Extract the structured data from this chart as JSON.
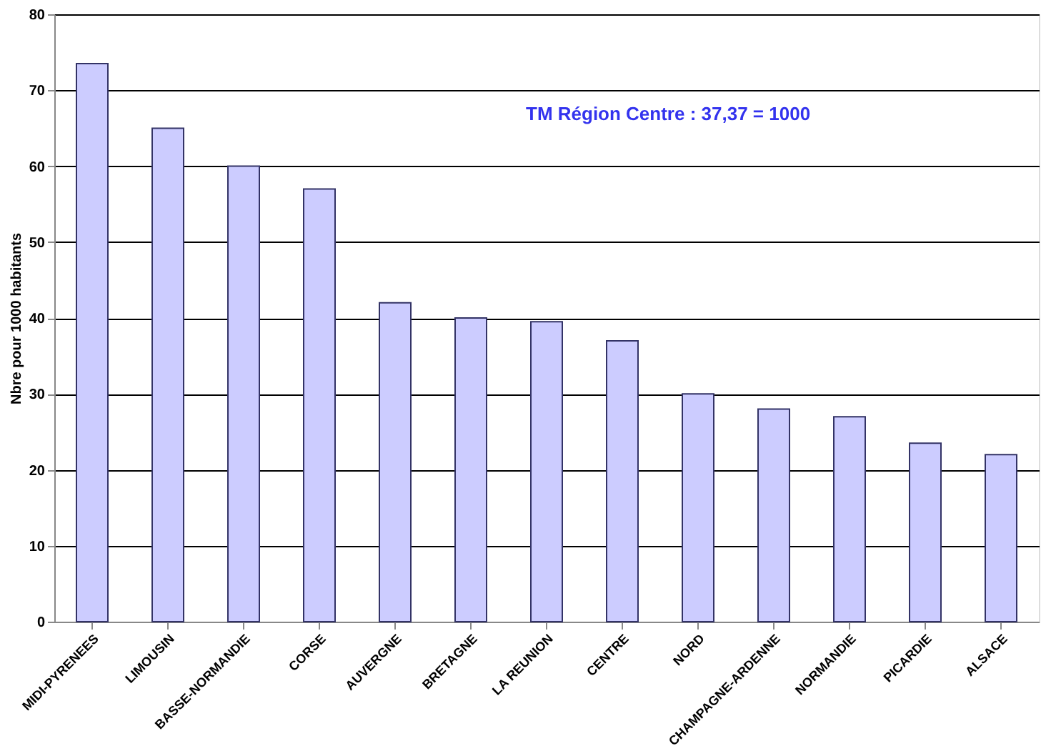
{
  "chart_data": {
    "type": "bar",
    "ylabel": "Nbre pour 1000 habitants",
    "categories": [
      "MIDI-PYRENEES",
      "LIMOUSIN",
      "BASSE-NORMANDIE",
      "CORSE",
      "AUVERGNE",
      "BRETAGNE",
      "LA REUNION",
      "CENTRE",
      "NORD",
      "CHAMPAGNE-ARDENNE",
      "NORMANDIE",
      "PICARDIE",
      "ALSACE"
    ],
    "values": [
      73.5,
      65,
      60,
      57,
      42,
      40,
      39.5,
      37,
      30,
      28,
      27,
      23.5,
      22
    ],
    "color": "#ccccff",
    "ylim": [
      0,
      80
    ],
    "yticks": [
      0,
      10,
      20,
      30,
      40,
      50,
      60,
      70,
      80
    ],
    "grid": "y",
    "annotations": [
      {
        "text": "TM Région Centre : 37,37 = 1000"
      }
    ]
  }
}
